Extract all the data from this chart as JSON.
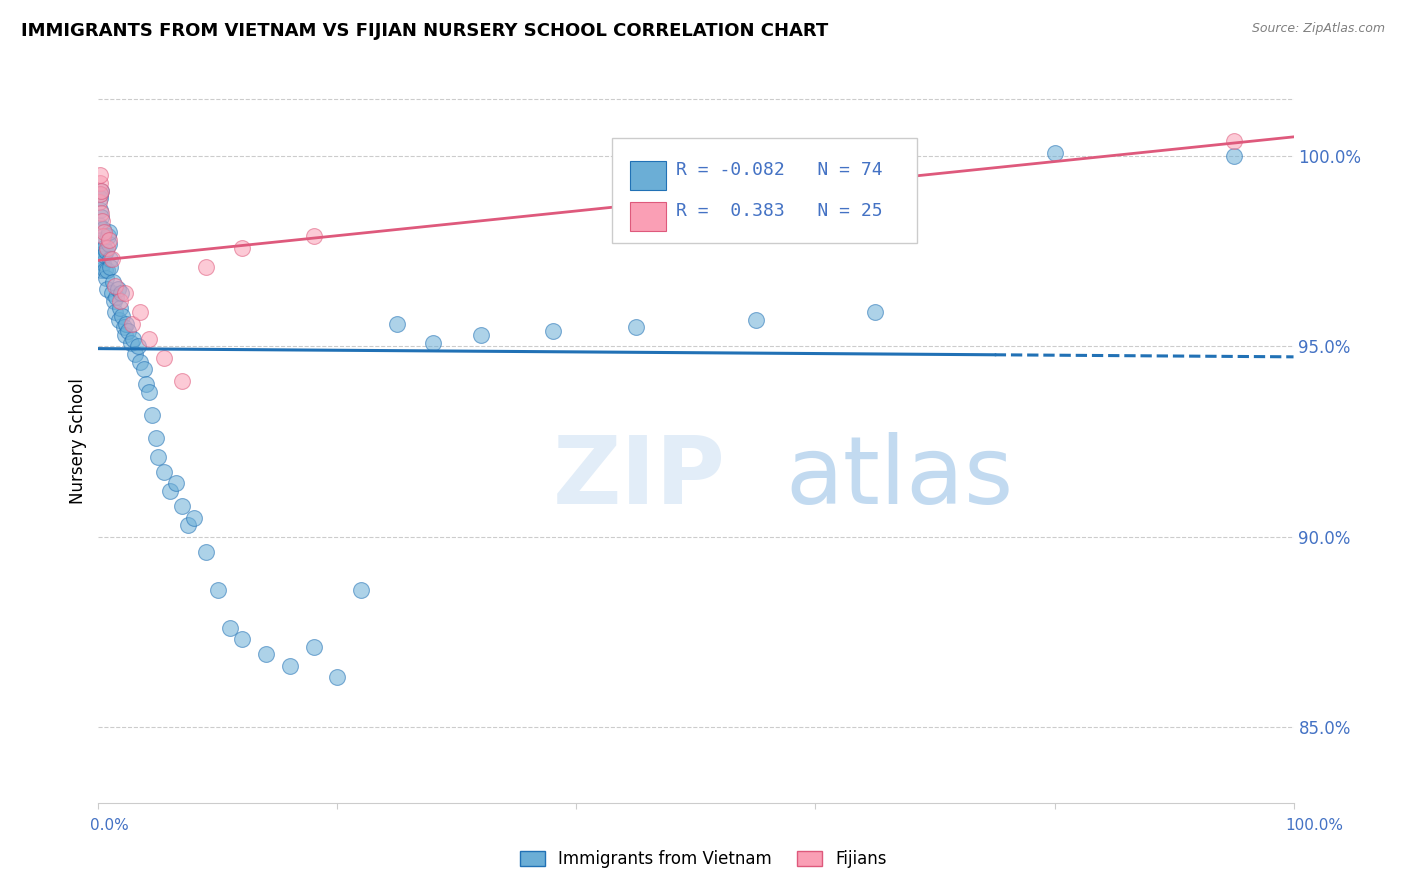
{
  "title": "IMMIGRANTS FROM VIETNAM VS FIJIAN NURSERY SCHOOL CORRELATION CHART",
  "source": "Source: ZipAtlas.com",
  "ylabel": "Nursery School",
  "legend_label1": "Immigrants from Vietnam",
  "legend_label2": "Fijians",
  "R1": -0.082,
  "N1": 74,
  "R2": 0.383,
  "N2": 25,
  "color_blue": "#6baed6",
  "color_pink": "#fa9fb5",
  "color_blue_line": "#2171b5",
  "color_pink_line": "#de597c",
  "blue_dots_x": [
    0.05,
    0.08,
    0.1,
    0.12,
    0.15,
    0.18,
    0.2,
    0.22,
    0.25,
    0.28,
    0.3,
    0.35,
    0.4,
    0.45,
    0.5,
    0.55,
    0.6,
    0.65,
    0.7,
    0.75,
    0.8,
    0.85,
    0.9,
    0.95,
    1.0,
    1.1,
    1.2,
    1.3,
    1.4,
    1.5,
    1.6,
    1.7,
    1.8,
    1.9,
    2.0,
    2.1,
    2.2,
    2.3,
    2.5,
    2.7,
    2.9,
    3.1,
    3.3,
    3.5,
    3.8,
    4.0,
    4.2,
    4.5,
    4.8,
    5.0,
    5.5,
    6.0,
    6.5,
    7.0,
    7.5,
    8.0,
    9.0,
    10.0,
    11.0,
    12.0,
    14.0,
    16.0,
    18.0,
    20.0,
    22.0,
    25.0,
    28.0,
    32.0,
    38.0,
    45.0,
    55.0,
    65.0,
    80.0,
    95.0
  ],
  "blue_dots_y": [
    97.8,
    98.2,
    99.0,
    98.6,
    98.9,
    99.1,
    97.5,
    98.4,
    97.0,
    97.3,
    97.8,
    97.2,
    98.1,
    97.6,
    97.4,
    97.0,
    97.5,
    96.8,
    97.0,
    96.5,
    97.9,
    97.7,
    98.0,
    97.3,
    97.1,
    96.4,
    96.7,
    96.2,
    95.9,
    96.3,
    96.5,
    95.7,
    96.0,
    96.4,
    95.8,
    95.5,
    95.3,
    95.6,
    95.4,
    95.1,
    95.2,
    94.8,
    95.0,
    94.6,
    94.4,
    94.0,
    93.8,
    93.2,
    92.6,
    92.1,
    91.7,
    91.2,
    91.4,
    90.8,
    90.3,
    90.5,
    89.6,
    88.6,
    87.6,
    87.3,
    86.9,
    86.6,
    87.1,
    86.3,
    88.6,
    95.6,
    95.1,
    95.3,
    95.4,
    95.5,
    95.7,
    95.9,
    100.1,
    100.0
  ],
  "pink_dots_x": [
    0.05,
    0.1,
    0.12,
    0.15,
    0.2,
    0.25,
    0.3,
    0.35,
    0.5,
    0.7,
    0.9,
    1.1,
    1.4,
    1.8,
    2.2,
    2.8,
    3.5,
    4.2,
    5.5,
    7.0,
    9.0,
    12.0,
    18.0,
    60.0,
    95.0
  ],
  "pink_dots_y": [
    98.8,
    99.3,
    99.0,
    99.5,
    98.5,
    99.1,
    98.3,
    97.9,
    98.0,
    97.6,
    97.8,
    97.3,
    96.6,
    96.2,
    96.4,
    95.6,
    95.9,
    95.2,
    94.7,
    94.1,
    97.1,
    97.6,
    97.9,
    100.2,
    100.4
  ],
  "xlim": [
    0.0,
    100.0
  ],
  "ylim": [
    83.0,
    102.0
  ],
  "yticks": [
    85.0,
    90.0,
    95.0,
    100.0
  ],
  "ytick_labels": [
    "85.0%",
    "90.0%",
    "95.0%",
    "100.0%"
  ],
  "blue_line_solid_end": 75.0,
  "grid_color": "#cccccc",
  "right_label_color": "#4472c4"
}
